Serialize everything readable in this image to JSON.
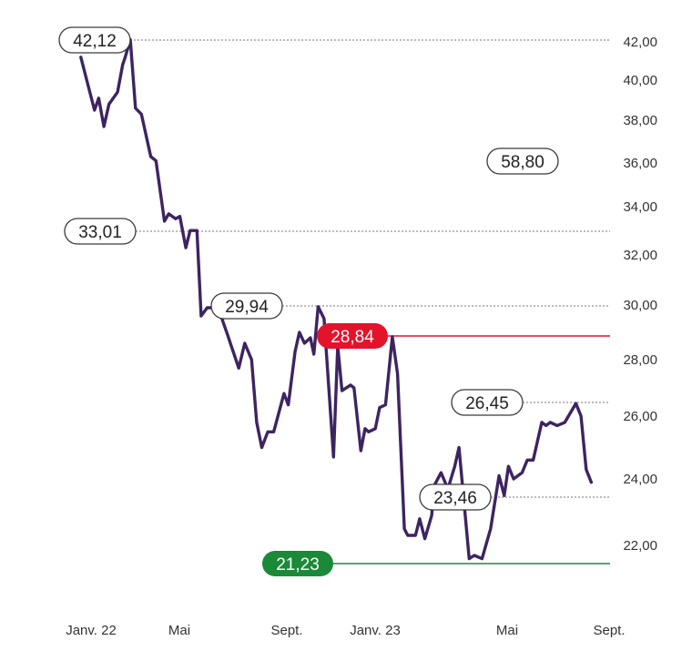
{
  "chart_data": {
    "type": "line",
    "title": "",
    "xlabel": "",
    "ylabel": "",
    "y_ticks": [
      "42,00",
      "40,00",
      "38,00",
      "36,00",
      "34,00",
      "32,00",
      "30,00",
      "28,00",
      "26,00",
      "24,00",
      "22,00"
    ],
    "x_ticks": [
      "Janv. 22",
      "Mai",
      "Sept.",
      "Janv. 23",
      "Mai",
      "Sept."
    ],
    "grid": "off",
    "series": [
      {
        "color": "#3d2461",
        "points": [
          [
            "2021-12-20",
            41.2
          ],
          [
            "2021-12-30",
            39.5
          ],
          [
            "2022-01-05",
            38.5
          ],
          [
            "2022-01-10",
            39.1
          ],
          [
            "2022-01-16",
            37.7
          ],
          [
            "2022-01-22",
            38.8
          ],
          [
            "2022-02-01",
            39.4
          ],
          [
            "2022-02-07",
            40.8
          ],
          [
            "2022-02-10",
            41.2
          ],
          [
            "2022-02-16",
            42.12
          ],
          [
            "2022-02-22",
            38.6
          ],
          [
            "2022-03-01",
            38.3
          ],
          [
            "2022-03-12",
            36.3
          ],
          [
            "2022-03-18",
            36.1
          ],
          [
            "2022-03-28",
            33.4
          ],
          [
            "2022-04-02",
            33.7
          ],
          [
            "2022-04-10",
            33.5
          ],
          [
            "2022-04-15",
            33.6
          ],
          [
            "2022-04-22",
            32.3
          ],
          [
            "2022-04-27",
            33.01
          ],
          [
            "2022-05-05",
            33.01
          ],
          [
            "2022-05-10",
            29.6
          ],
          [
            "2022-05-17",
            29.9
          ],
          [
            "2022-05-25",
            29.9
          ],
          [
            "2022-05-31",
            29.8
          ],
          [
            "2022-06-10",
            28.9
          ],
          [
            "2022-06-23",
            27.7
          ],
          [
            "2022-06-30",
            28.6
          ],
          [
            "2022-07-08",
            28.0
          ],
          [
            "2022-07-14",
            25.8
          ],
          [
            "2022-07-20",
            25.0
          ],
          [
            "2022-07-27",
            25.5
          ],
          [
            "2022-08-03",
            25.5
          ],
          [
            "2022-08-15",
            26.8
          ],
          [
            "2022-08-20",
            26.4
          ],
          [
            "2022-08-28",
            28.3
          ],
          [
            "2022-09-02",
            29.0
          ],
          [
            "2022-09-08",
            28.6
          ],
          [
            "2022-09-15",
            28.8
          ],
          [
            "2022-09-19",
            28.2
          ],
          [
            "2022-09-24",
            29.94
          ],
          [
            "2022-10-01",
            29.5
          ],
          [
            "2022-10-12",
            24.7
          ],
          [
            "2022-10-17",
            28.5
          ],
          [
            "2022-10-22",
            26.9
          ],
          [
            "2022-11-01",
            27.1
          ],
          [
            "2022-11-05",
            27.0
          ],
          [
            "2022-11-13",
            24.9
          ],
          [
            "2022-11-18",
            25.6
          ],
          [
            "2022-11-22",
            25.5
          ],
          [
            "2022-11-30",
            25.6
          ],
          [
            "2022-12-05",
            26.3
          ],
          [
            "2022-12-12",
            26.4
          ],
          [
            "2022-12-20",
            28.84
          ],
          [
            "2022-12-26",
            27.5
          ],
          [
            "2023-01-03",
            22.5
          ],
          [
            "2023-01-07",
            22.3
          ],
          [
            "2023-01-16",
            22.3
          ],
          [
            "2023-01-21",
            22.8
          ],
          [
            "2023-01-27",
            22.2
          ],
          [
            "2023-02-04",
            22.9
          ],
          [
            "2023-02-07",
            23.8
          ],
          [
            "2023-02-15",
            24.2
          ],
          [
            "2023-02-23",
            23.7
          ],
          [
            "2023-03-03",
            24.4
          ],
          [
            "2023-03-08",
            25.0
          ],
          [
            "2023-03-20",
            21.6
          ],
          [
            "2023-03-26",
            21.7
          ],
          [
            "2023-04-04",
            21.6
          ],
          [
            "2023-04-14",
            22.5
          ],
          [
            "2023-04-24",
            24.1
          ],
          [
            "2023-04-30",
            23.5
          ],
          [
            "2023-05-05",
            24.4
          ],
          [
            "2023-05-11",
            24.0
          ],
          [
            "2023-05-21",
            24.2
          ],
          [
            "2023-05-27",
            24.6
          ],
          [
            "2023-06-03",
            24.6
          ],
          [
            "2023-06-13",
            25.8
          ],
          [
            "2023-06-18",
            25.7
          ],
          [
            "2023-06-23",
            25.8
          ],
          [
            "2023-07-01",
            25.7
          ],
          [
            "2023-07-10",
            25.8
          ],
          [
            "2023-07-23",
            26.45
          ],
          [
            "2023-07-29",
            26.0
          ],
          [
            "2023-08-04",
            24.3
          ],
          [
            "2023-08-10",
            23.9
          ]
        ]
      }
    ],
    "annotations": [
      {
        "label": "42,12",
        "value": 42.12,
        "style": "outline"
      },
      {
        "label": "33,01",
        "value": 33.01,
        "style": "outline"
      },
      {
        "label": "29,94",
        "value": 29.94,
        "style": "outline"
      },
      {
        "label": "28,84",
        "value": 28.84,
        "style": "filled",
        "color": "#e3132b"
      },
      {
        "label": "26,45",
        "value": 26.45,
        "style": "outline"
      },
      {
        "label": "23,46",
        "value": 23.46,
        "style": "outline"
      },
      {
        "label": "21,23",
        "value": 21.23,
        "style": "filled",
        "color": "#1a8a38"
      },
      {
        "label": "58,80",
        "style": "outline"
      }
    ]
  }
}
